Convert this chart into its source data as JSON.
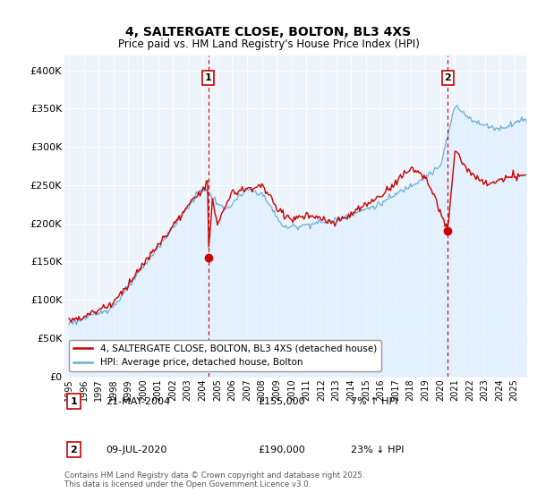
{
  "title": "4, SALTERGATE CLOSE, BOLTON, BL3 4XS",
  "subtitle": "Price paid vs. HM Land Registry's House Price Index (HPI)",
  "ylabel_ticks": [
    "£0",
    "£50K",
    "£100K",
    "£150K",
    "£200K",
    "£250K",
    "£300K",
    "£350K",
    "£400K"
  ],
  "ytick_values": [
    0,
    50000,
    100000,
    150000,
    200000,
    250000,
    300000,
    350000,
    400000
  ],
  "ylim": [
    0,
    420000
  ],
  "xlim_start": 1994.7,
  "xlim_end": 2025.8,
  "hpi_color": "#6baed6",
  "hpi_fill_color": "#ddeeff",
  "price_color": "#cc0000",
  "marker1_x": 2004.38,
  "marker1_y": 155000,
  "marker2_x": 2020.52,
  "marker2_y": 190000,
  "marker1_label": "1",
  "marker2_label": "2",
  "annotation_table": [
    [
      "1",
      "21-MAY-2004",
      "£155,000",
      "7% ↑ HPI"
    ],
    [
      "2",
      "09-JUL-2020",
      "£190,000",
      "23% ↓ HPI"
    ]
  ],
  "legend_entries": [
    "4, SALTERGATE CLOSE, BOLTON, BL3 4XS (detached house)",
    "HPI: Average price, detached house, Bolton"
  ],
  "footer": "Contains HM Land Registry data © Crown copyright and database right 2025.\nThis data is licensed under the Open Government Licence v3.0.",
  "background_color": "#ffffff",
  "plot_bg_color": "#eef4fb",
  "grid_color": "#ffffff"
}
